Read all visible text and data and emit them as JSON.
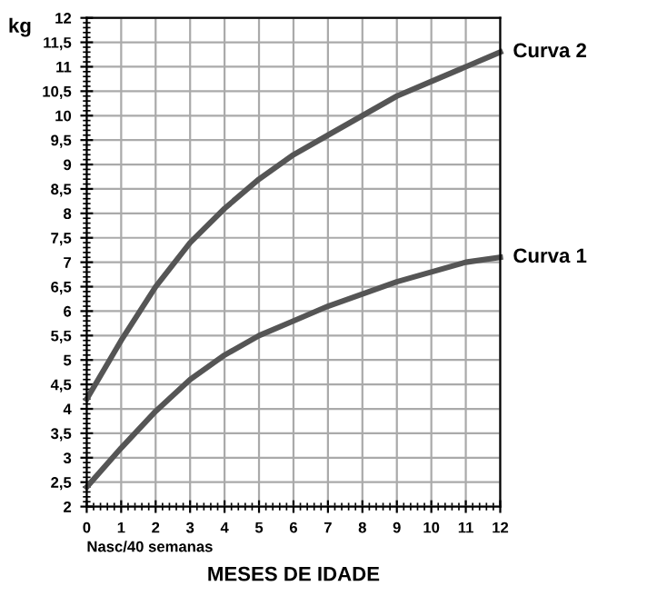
{
  "chart_data": {
    "type": "line",
    "xlabel": "MESES DE IDADE",
    "ylabel": "kg",
    "x": [
      0,
      1,
      2,
      3,
      4,
      5,
      6,
      7,
      8,
      9,
      10,
      11,
      12
    ],
    "series": [
      {
        "name": "Curva 2",
        "color": "#555555",
        "values": [
          4.2,
          5.4,
          6.5,
          7.4,
          8.1,
          8.7,
          9.2,
          9.6,
          10.0,
          10.4,
          10.7,
          11.0,
          11.3
        ]
      },
      {
        "name": "Curva 1",
        "color": "#555555",
        "values": [
          2.4,
          3.2,
          3.95,
          4.6,
          5.1,
          5.5,
          5.8,
          6.1,
          6.35,
          6.6,
          6.8,
          7.0,
          7.1
        ]
      }
    ],
    "xlim": [
      0,
      12
    ],
    "xticks": [
      0,
      1,
      2,
      3,
      4,
      5,
      6,
      7,
      8,
      9,
      10,
      11,
      12
    ],
    "ylim": [
      2,
      12
    ],
    "yticks": [
      2,
      {
        "value": 2.5,
        "label": "2,5"
      },
      3,
      {
        "value": 3.5,
        "label": "3,5"
      },
      4,
      {
        "value": 4.5,
        "label": "4,5"
      },
      5,
      {
        "value": 5.5,
        "label": "5,5"
      },
      6,
      {
        "value": 6.5,
        "label": "6,5"
      },
      7,
      {
        "value": 7.5,
        "label": "7,5"
      },
      8,
      {
        "value": 8.5,
        "label": "8,5"
      },
      9,
      {
        "value": 9.5,
        "label": "9,5"
      },
      10,
      {
        "value": 10.5,
        "label": "10,5"
      },
      11,
      {
        "value": 11.5,
        "label": "11,5"
      },
      12
    ],
    "grid": true,
    "legend": false,
    "marker": "none",
    "line_style": "solid",
    "annotations": [
      "Nasc/40 semanas"
    ]
  }
}
